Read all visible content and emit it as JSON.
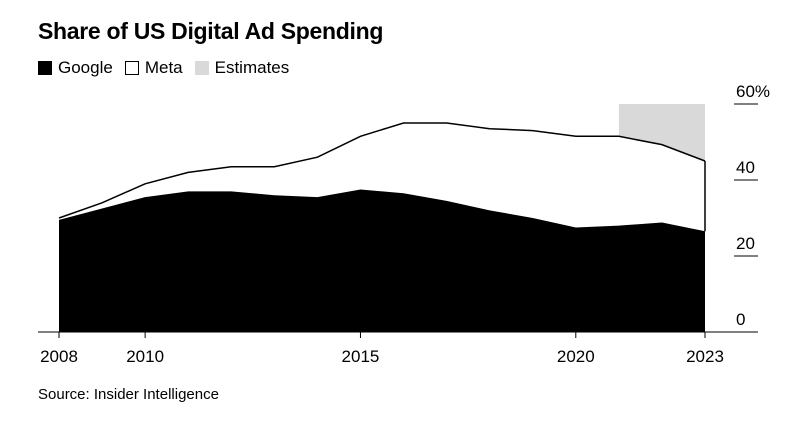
{
  "title": "Share of US Digital Ad Spending",
  "legend": [
    {
      "label": "Google",
      "color": "#000000",
      "icon": "filled-square"
    },
    {
      "label": "Meta",
      "color": "#ffffff",
      "icon": "outlined-square"
    },
    {
      "label": "Estimates",
      "color": "#d9d9d9",
      "icon": "grey-square"
    }
  ],
  "source": "Source: Insider Intelligence",
  "chart_data": {
    "type": "area",
    "title": "Share of US Digital Ad Spending",
    "x": [
      2008,
      2009,
      2010,
      2011,
      2012,
      2013,
      2014,
      2015,
      2016,
      2017,
      2018,
      2019,
      2020,
      2021,
      2022,
      2023
    ],
    "series": [
      {
        "name": "Google",
        "values": [
          29.5,
          32.5,
          35.5,
          37,
          37,
          36,
          35.5,
          37.5,
          36.5,
          34.5,
          32,
          30,
          27.5,
          28,
          28.8,
          26.5
        ]
      },
      {
        "name": "Meta",
        "values": [
          0.5,
          1.5,
          3.5,
          5,
          6.5,
          7.5,
          10.5,
          14,
          18.5,
          20.5,
          21.5,
          23,
          24,
          23.5,
          20.5,
          18.5
        ]
      }
    ],
    "estimates_range": [
      2021,
      2023
    ],
    "y_tick_labels": [
      "0",
      "20",
      "40",
      "60%"
    ],
    "ylim": [
      0,
      60
    ],
    "xlim": [
      2008,
      2023
    ],
    "x_tick_labels": [
      "2008",
      "2010",
      "2015",
      "2020",
      "2023"
    ],
    "y_axis_side": "right"
  }
}
